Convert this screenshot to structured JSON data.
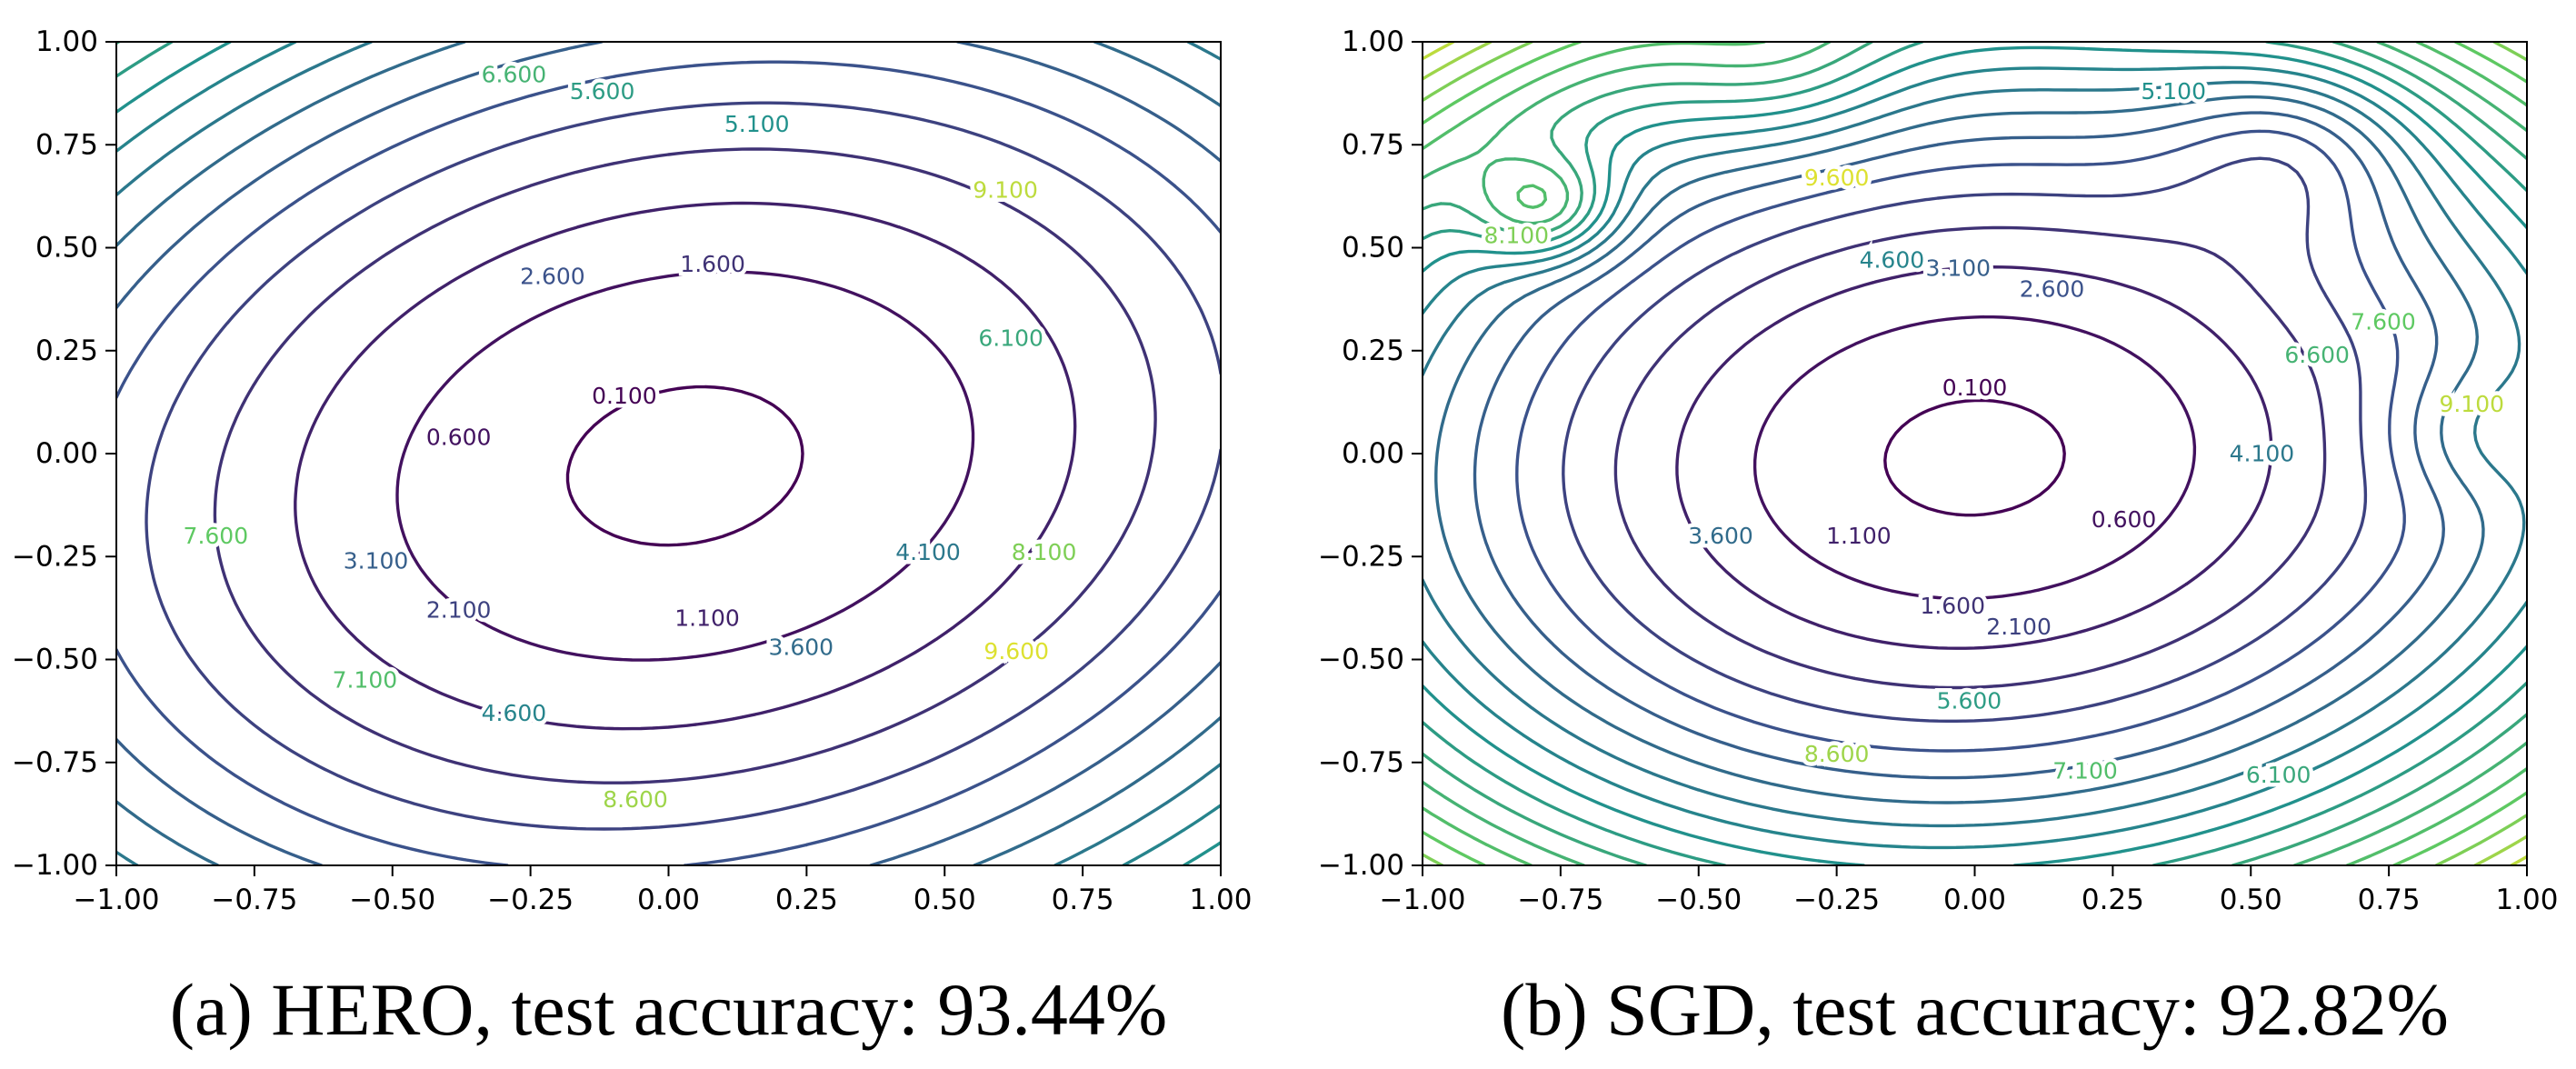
{
  "chart_data": [
    {
      "type": "contour",
      "panel": "a",
      "caption": "(a) HERO, test accuracy: 93.44%",
      "xlim": [
        -1.0,
        1.0
      ],
      "ylim": [
        -1.0,
        1.0
      ],
      "x_ticks": [
        "−1.00",
        "−0.75",
        "−0.50",
        "−0.25",
        "0.00",
        "0.25",
        "0.50",
        "0.75",
        "1.00"
      ],
      "y_ticks": [
        "1.00",
        "0.75",
        "0.50",
        "0.25",
        "0.00",
        "−0.25",
        "−0.50",
        "−0.75",
        "−1.00"
      ],
      "minimum": [
        0.03,
        -0.03
      ],
      "basin_scale": [
        0.27,
        0.225
      ],
      "tilt_deg": 28,
      "colormap": "viridis",
      "level_range": [
        0.1,
        10.1
      ],
      "levels": [
        0.1,
        0.6,
        1.1,
        1.6,
        2.1,
        2.6,
        3.1,
        3.6,
        4.1,
        4.6,
        5.1,
        5.6,
        6.1,
        6.6,
        7.1,
        7.6,
        8.1,
        8.6,
        9.1,
        9.6
      ],
      "contour_labels": [
        {
          "text": "0.100",
          "x": -0.08,
          "y": 0.14,
          "level": 0.1
        },
        {
          "text": "0.600",
          "x": -0.38,
          "y": 0.04,
          "level": 0.6
        },
        {
          "text": "1.100",
          "x": 0.07,
          "y": -0.4,
          "level": 1.1
        },
        {
          "text": "1.600",
          "x": 0.08,
          "y": 0.46,
          "level": 1.6
        },
        {
          "text": "2.100",
          "x": -0.38,
          "y": -0.38,
          "level": 2.1
        },
        {
          "text": "2.600",
          "x": -0.21,
          "y": 0.43,
          "level": 2.6
        },
        {
          "text": "3.100",
          "x": -0.53,
          "y": -0.26,
          "level": 3.1
        },
        {
          "text": "3.600",
          "x": 0.24,
          "y": -0.47,
          "level": 3.6
        },
        {
          "text": "4.100",
          "x": 0.47,
          "y": -0.24,
          "level": 4.1
        },
        {
          "text": "4.600",
          "x": -0.28,
          "y": -0.63,
          "level": 4.6
        },
        {
          "text": "5.100",
          "x": 0.16,
          "y": 0.8,
          "level": 5.1
        },
        {
          "text": "5.600",
          "x": -0.12,
          "y": 0.88,
          "level": 5.6
        },
        {
          "text": "6.100",
          "x": 0.62,
          "y": 0.28,
          "level": 6.1
        },
        {
          "text": "6.600",
          "x": -0.28,
          "y": 0.92,
          "level": 6.6
        },
        {
          "text": "7.100",
          "x": -0.55,
          "y": -0.55,
          "level": 7.1
        },
        {
          "text": "7.600",
          "x": -0.82,
          "y": -0.2,
          "level": 7.6
        },
        {
          "text": "8.100",
          "x": 0.68,
          "y": -0.24,
          "level": 8.1
        },
        {
          "text": "8.600",
          "x": -0.06,
          "y": -0.84,
          "level": 8.6
        },
        {
          "text": "9.100",
          "x": 0.61,
          "y": 0.64,
          "level": 9.1
        },
        {
          "text": "9.600",
          "x": 0.63,
          "y": -0.48,
          "level": 9.6
        }
      ]
    },
    {
      "type": "contour",
      "panel": "b",
      "caption": "(b) SGD, test accuracy: 92.82%",
      "xlim": [
        -1.0,
        1.0
      ],
      "ylim": [
        -1.0,
        1.0
      ],
      "x_ticks": [
        "−1.00",
        "−0.75",
        "−0.50",
        "−0.25",
        "0.00",
        "0.25",
        "0.50",
        "0.75",
        "1.00"
      ],
      "y_ticks": [
        "1.00",
        "0.75",
        "0.50",
        "0.25",
        "0.00",
        "−0.25",
        "−0.50",
        "−0.75",
        "−1.00"
      ],
      "minimum": [
        0.0,
        -0.01
      ],
      "basin_scale": [
        0.2,
        0.17
      ],
      "tilt_deg": 10,
      "colormap": "viridis",
      "level_range": [
        0.1,
        10.1
      ],
      "levels": [
        0.1,
        0.6,
        1.1,
        1.6,
        2.1,
        2.6,
        3.1,
        3.6,
        4.1,
        4.6,
        5.1,
        5.6,
        6.1,
        6.6,
        7.1,
        7.6,
        8.1,
        8.6,
        9.1,
        9.6
      ],
      "contour_labels": [
        {
          "text": "0.100",
          "x": 0.0,
          "y": 0.16,
          "level": 0.1
        },
        {
          "text": "0.600",
          "x": 0.27,
          "y": -0.16,
          "level": 0.6
        },
        {
          "text": "1.100",
          "x": -0.21,
          "y": -0.2,
          "level": 1.1
        },
        {
          "text": "1.600",
          "x": -0.04,
          "y": -0.37,
          "level": 1.6
        },
        {
          "text": "2.100",
          "x": 0.08,
          "y": -0.42,
          "level": 2.1
        },
        {
          "text": "2.600",
          "x": 0.14,
          "y": 0.4,
          "level": 2.6
        },
        {
          "text": "3.100",
          "x": -0.03,
          "y": 0.45,
          "level": 3.1
        },
        {
          "text": "3.600",
          "x": -0.46,
          "y": -0.2,
          "level": 3.6
        },
        {
          "text": "4.100",
          "x": 0.52,
          "y": 0.0,
          "level": 4.1
        },
        {
          "text": "4.600",
          "x": -0.15,
          "y": 0.47,
          "level": 4.6
        },
        {
          "text": "5.100",
          "x": 0.36,
          "y": 0.88,
          "level": 5.1
        },
        {
          "text": "5.600",
          "x": -0.01,
          "y": -0.6,
          "level": 5.6
        },
        {
          "text": "6.100",
          "x": 0.55,
          "y": -0.78,
          "level": 6.1
        },
        {
          "text": "6.600",
          "x": 0.62,
          "y": 0.24,
          "level": 6.6
        },
        {
          "text": "7.100",
          "x": 0.2,
          "y": -0.77,
          "level": 7.1
        },
        {
          "text": "7.600",
          "x": 0.74,
          "y": 0.32,
          "level": 7.6
        },
        {
          "text": "8.100",
          "x": -0.83,
          "y": 0.53,
          "level": 8.1
        },
        {
          "text": "8.600",
          "x": -0.25,
          "y": -0.73,
          "level": 8.6
        },
        {
          "text": "9.100",
          "x": 0.9,
          "y": 0.12,
          "level": 9.1
        },
        {
          "text": "9.600",
          "x": -0.25,
          "y": 0.67,
          "level": 9.6
        }
      ]
    }
  ]
}
